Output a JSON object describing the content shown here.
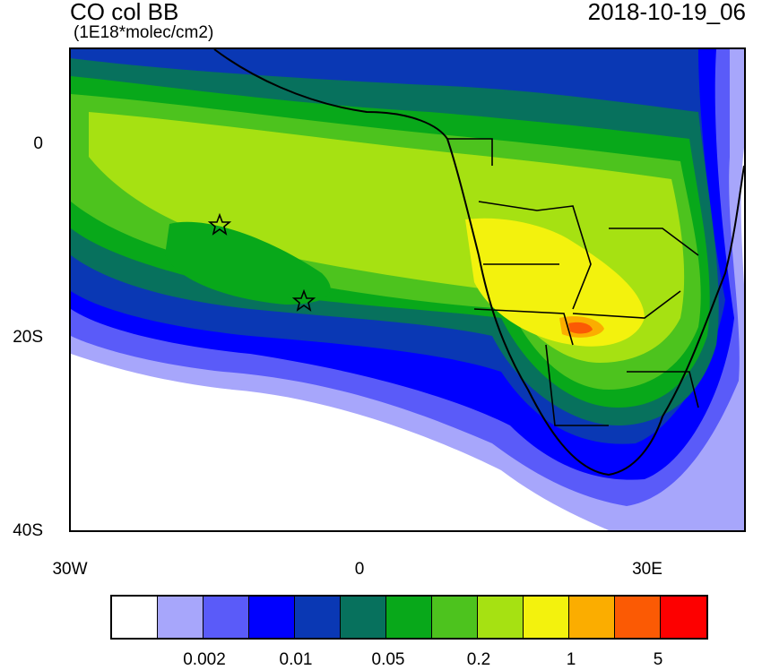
{
  "title": "CO col BB",
  "units": "(1E18*molec/cm2)",
  "datetime": "2018-10-19_06",
  "y_ticks": [
    "0",
    "20S",
    "40S"
  ],
  "x_ticks": [
    "30W",
    "0",
    "30E"
  ],
  "colorbar": {
    "colors": [
      "#ffffff",
      "#a7a6fb",
      "#5a5bf9",
      "#0000ff",
      "#0a38b4",
      "#07715d",
      "#08a81a",
      "#4dc31e",
      "#a6e112",
      "#f3f20d",
      "#fbad00",
      "#fb5a04",
      "#fd0000"
    ],
    "labels": [
      "0.002",
      "0.01",
      "0.05",
      "0.2",
      "1",
      "5"
    ]
  },
  "markers": [
    {
      "name": "star-marker-1",
      "lat": -8,
      "lon": -14.5
    },
    {
      "name": "star-marker-2",
      "lat": -16,
      "lon": -5.6
    }
  ]
}
